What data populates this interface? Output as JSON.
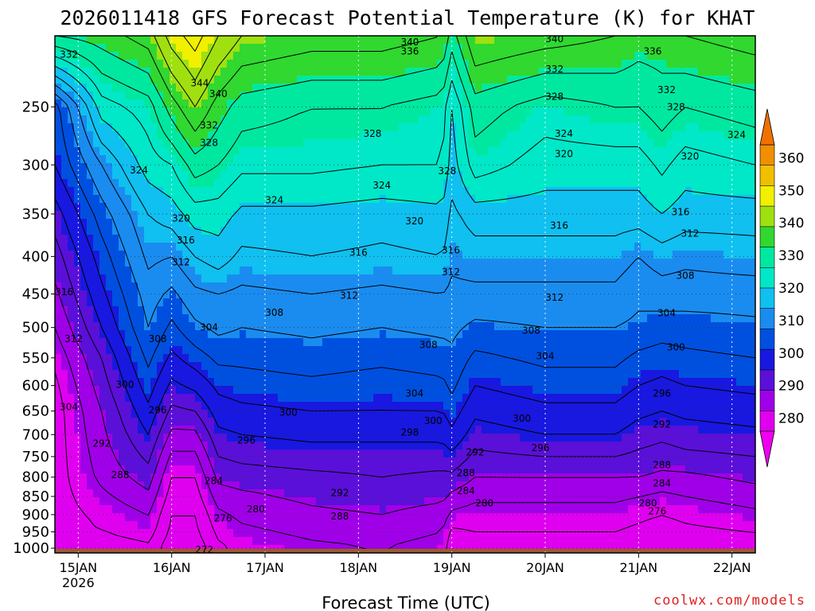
{
  "chart_data": {
    "type": "heatmap",
    "title": "2026011418 GFS Forecast Potential Temperature (K) for KHAT",
    "xlabel": "Forecast Time (UTC)",
    "ylabel": "",
    "credit": "coolwx.com/models",
    "x_ticks": [
      {
        "day": 0,
        "label": "15JAN",
        "sub": "2026"
      },
      {
        "day": 1,
        "label": "16JAN",
        "sub": ""
      },
      {
        "day": 2,
        "label": "17JAN",
        "sub": ""
      },
      {
        "day": 3,
        "label": "18JAN",
        "sub": ""
      },
      {
        "day": 4,
        "label": "19JAN",
        "sub": ""
      },
      {
        "day": 5,
        "label": "20JAN",
        "sub": ""
      },
      {
        "day": 6,
        "label": "21JAN",
        "sub": ""
      },
      {
        "day": 7,
        "label": "22JAN",
        "sub": ""
      }
    ],
    "xlim_days": [
      -0.25,
      7.25
    ],
    "y_ticks": [
      "250",
      "300",
      "350",
      "400",
      "450",
      "500",
      "550",
      "600",
      "650",
      "700",
      "750",
      "800",
      "850",
      "900",
      "950",
      "1000"
    ],
    "y_tick_values": [
      250,
      300,
      350,
      400,
      450,
      500,
      550,
      600,
      650,
      700,
      750,
      800,
      850,
      900,
      950,
      1000
    ],
    "ylim_hpa": [
      200,
      1015
    ],
    "y_scale": "log",
    "colorbar": {
      "ticks": [
        "280",
        "290",
        "300",
        "310",
        "320",
        "330",
        "340",
        "350",
        "360"
      ],
      "colors": [
        "#e000f0",
        "#a000e8",
        "#5a10d8",
        "#1818e0",
        "#0050e0",
        "#1a8cf0",
        "#10c0f0",
        "#00e8c8",
        "#00e8a0",
        "#30d830",
        "#a0e010",
        "#f0f000",
        "#f0c000",
        "#f09000"
      ],
      "range": [
        276,
        364
      ]
    },
    "levels_hpa": [
      200,
      250,
      300,
      350,
      400,
      450,
      500,
      550,
      600,
      650,
      700,
      750,
      800,
      850,
      900,
      950,
      1000
    ],
    "times_days": [
      -0.25,
      0.25,
      0.75,
      1,
      1.25,
      1.5,
      1.75,
      2.5,
      3.25,
      3.9,
      4,
      4.25,
      5,
      5.75,
      6,
      6.25,
      6.5,
      7.25
    ],
    "theta_k": [
      [
        332,
        302,
        300,
        294,
        290,
        287,
        284,
        281,
        279,
        278,
        278,
        278,
        278,
        278,
        278,
        278,
        276
      ],
      [
        334,
        322,
        312,
        306,
        302,
        299,
        296,
        292,
        290,
        288,
        287,
        286,
        285,
        283,
        281,
        280,
        277
      ],
      [
        338,
        326,
        322,
        316,
        313,
        310,
        308,
        305,
        302,
        299,
        296,
        293,
        290,
        287,
        284,
        282,
        279
      ],
      [
        346,
        334,
        324,
        318,
        312,
        307,
        303,
        299,
        295,
        291,
        287,
        283,
        280,
        278,
        276,
        275,
        273
      ],
      [
        350,
        340,
        330,
        322,
        316,
        311,
        307,
        302,
        297,
        292,
        287,
        283,
        280,
        278,
        276,
        275,
        273
      ],
      [
        344,
        334,
        328,
        322,
        318,
        312,
        309,
        305,
        301,
        298,
        295,
        292,
        289,
        286,
        283,
        281,
        279
      ],
      [
        340,
        330,
        325,
        319,
        315,
        311,
        308,
        305,
        302,
        299,
        296,
        293,
        290,
        287,
        285,
        283,
        281
      ],
      [
        338,
        328,
        325,
        319,
        316,
        312,
        309,
        306,
        303,
        300,
        297,
        294,
        291,
        289,
        287,
        285,
        283
      ],
      [
        338,
        328,
        324,
        318,
        315,
        311,
        308,
        305,
        302,
        300,
        297,
        294,
        292,
        290,
        288,
        286,
        284
      ],
      [
        336,
        326,
        324,
        319,
        316,
        312,
        309,
        306,
        303,
        300,
        297,
        294,
        291,
        289,
        286,
        284,
        282
      ],
      [
        330,
        320,
        318,
        315,
        313,
        311,
        309,
        307,
        305,
        302,
        299,
        295,
        291,
        287,
        283,
        279,
        277
      ],
      [
        340,
        330,
        326,
        318,
        314,
        311,
        307,
        303,
        300,
        297,
        294,
        291,
        288,
        285,
        282,
        280,
        278
      ],
      [
        338,
        326,
        322,
        318,
        314,
        311,
        308,
        305,
        302,
        299,
        296,
        292,
        288,
        285,
        282,
        280,
        278
      ],
      [
        336,
        328,
        322,
        318,
        314,
        311,
        308,
        305,
        302,
        299,
        296,
        292,
        288,
        285,
        282,
        280,
        278
      ],
      [
        334,
        328,
        322,
        318,
        312,
        309,
        307,
        303,
        300,
        297,
        294,
        291,
        288,
        284,
        281,
        279,
        277
      ],
      [
        334,
        330,
        325,
        320,
        314,
        310,
        306,
        302,
        299,
        296,
        293,
        290,
        287,
        283,
        280,
        278,
        276
      ],
      [
        336,
        328,
        322,
        318,
        313,
        310,
        306,
        303,
        300,
        297,
        294,
        291,
        287,
        284,
        281,
        279,
        277
      ],
      [
        338,
        330,
        324,
        318,
        314,
        310,
        307,
        304,
        301,
        298,
        295,
        292,
        289,
        286,
        283,
        280,
        278
      ]
    ],
    "contour_interval_k": 4,
    "contour_labels": [
      {
        "label": "332",
        "day": -0.1,
        "hpa": 212
      },
      {
        "label": "344",
        "day": 1.3,
        "hpa": 232
      },
      {
        "label": "340",
        "day": 1.5,
        "hpa": 240
      },
      {
        "label": "332",
        "day": 1.4,
        "hpa": 265
      },
      {
        "label": "328",
        "day": 1.4,
        "hpa": 280
      },
      {
        "label": "340",
        "day": 3.55,
        "hpa": 204
      },
      {
        "label": "336",
        "day": 3.55,
        "hpa": 210
      },
      {
        "label": "340",
        "day": 5.1,
        "hpa": 202
      },
      {
        "label": "332",
        "day": 5.1,
        "hpa": 222
      },
      {
        "label": "336",
        "day": 6.15,
        "hpa": 210
      },
      {
        "label": "328",
        "day": 3.15,
        "hpa": 272
      },
      {
        "label": "324",
        "day": 0.65,
        "hpa": 305
      },
      {
        "label": "324",
        "day": 2.1,
        "hpa": 335
      },
      {
        "label": "324",
        "day": 3.25,
        "hpa": 320
      },
      {
        "label": "328",
        "day": 3.95,
        "hpa": 306
      },
      {
        "label": "328",
        "day": 5.1,
        "hpa": 242
      },
      {
        "label": "324",
        "day": 5.2,
        "hpa": 272
      },
      {
        "label": "320",
        "day": 5.2,
        "hpa": 290
      },
      {
        "label": "332",
        "day": 6.3,
        "hpa": 237
      },
      {
        "label": "328",
        "day": 6.4,
        "hpa": 250
      },
      {
        "label": "324",
        "day": 7.05,
        "hpa": 273
      },
      {
        "label": "320",
        "day": 6.55,
        "hpa": 292
      },
      {
        "label": "320",
        "day": 1.1,
        "hpa": 355
      },
      {
        "label": "316",
        "day": 1.15,
        "hpa": 380
      },
      {
        "label": "312",
        "day": 1.1,
        "hpa": 407
      },
      {
        "label": "316",
        "day": 3.0,
        "hpa": 395
      },
      {
        "label": "320",
        "day": 3.6,
        "hpa": 358
      },
      {
        "label": "316",
        "day": 3.99,
        "hpa": 392
      },
      {
        "label": "312",
        "day": 3.99,
        "hpa": 420
      },
      {
        "label": "316",
        "day": 6.45,
        "hpa": 348
      },
      {
        "label": "312",
        "day": 6.55,
        "hpa": 372
      },
      {
        "label": "316",
        "day": 5.15,
        "hpa": 363
      },
      {
        "label": "308",
        "day": 6.5,
        "hpa": 425
      },
      {
        "label": "316",
        "day": -0.15,
        "hpa": 447
      },
      {
        "label": "312",
        "day": -0.05,
        "hpa": 518
      },
      {
        "label": "308",
        "day": 0.85,
        "hpa": 518
      },
      {
        "label": "304",
        "day": 1.4,
        "hpa": 500
      },
      {
        "label": "308",
        "day": 2.1,
        "hpa": 477
      },
      {
        "label": "312",
        "day": 2.9,
        "hpa": 452
      },
      {
        "label": "312",
        "day": 5.1,
        "hpa": 455
      },
      {
        "label": "308",
        "day": 4.85,
        "hpa": 505
      },
      {
        "label": "304",
        "day": 5.0,
        "hpa": 547
      },
      {
        "label": "304",
        "day": 6.3,
        "hpa": 478
      },
      {
        "label": "300",
        "day": 6.4,
        "hpa": 532
      },
      {
        "label": "308",
        "day": 3.75,
        "hpa": 528
      },
      {
        "label": "304",
        "day": 3.6,
        "hpa": 615
      },
      {
        "label": "300",
        "day": 0.5,
        "hpa": 598
      },
      {
        "label": "304",
        "day": -0.1,
        "hpa": 642
      },
      {
        "label": "296",
        "day": 0.85,
        "hpa": 648
      },
      {
        "label": "300",
        "day": 2.25,
        "hpa": 653
      },
      {
        "label": "296",
        "day": 1.8,
        "hpa": 713
      },
      {
        "label": "298",
        "day": 3.55,
        "hpa": 695
      },
      {
        "label": "300",
        "day": 3.8,
        "hpa": 670
      },
      {
        "label": "300",
        "day": 4.75,
        "hpa": 665
      },
      {
        "label": "296",
        "day": 6.25,
        "hpa": 615
      },
      {
        "label": "292",
        "day": 6.25,
        "hpa": 678
      },
      {
        "label": "296",
        "day": 4.95,
        "hpa": 730
      },
      {
        "label": "292",
        "day": 4.25,
        "hpa": 740
      },
      {
        "label": "292",
        "day": 0.25,
        "hpa": 720
      },
      {
        "label": "288",
        "day": 0.45,
        "hpa": 795
      },
      {
        "label": "284",
        "day": 1.45,
        "hpa": 810
      },
      {
        "label": "292",
        "day": 2.8,
        "hpa": 840
      },
      {
        "label": "288",
        "day": 2.8,
        "hpa": 905
      },
      {
        "label": "280",
        "day": 1.9,
        "hpa": 885
      },
      {
        "label": "276",
        "day": 1.55,
        "hpa": 910
      },
      {
        "label": "288",
        "day": 4.15,
        "hpa": 790
      },
      {
        "label": "284",
        "day": 4.15,
        "hpa": 835
      },
      {
        "label": "280",
        "day": 4.35,
        "hpa": 868
      },
      {
        "label": "288",
        "day": 6.25,
        "hpa": 770
      },
      {
        "label": "284",
        "day": 6.25,
        "hpa": 816
      },
      {
        "label": "280",
        "day": 6.1,
        "hpa": 868
      },
      {
        "label": "276",
        "day": 6.2,
        "hpa": 890
      },
      {
        "label": "272",
        "day": 1.35,
        "hpa": 1005
      }
    ],
    "ground_color": "#9a5a30",
    "grid": true,
    "legend": "right"
  }
}
